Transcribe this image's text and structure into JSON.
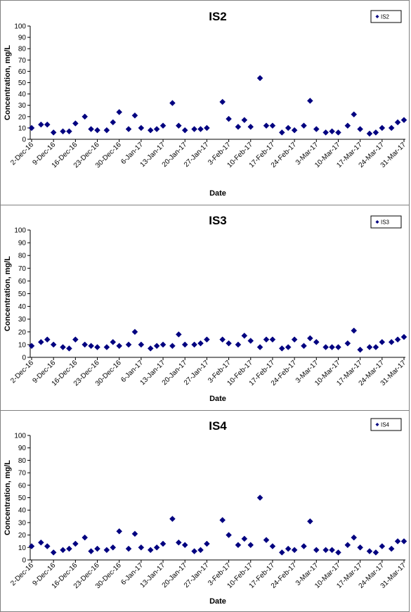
{
  "chart_data": [
    {
      "type": "scatter",
      "title": "IS2",
      "xlabel": "Date",
      "ylabel": "Concentration, mg/L",
      "ylim": [
        0,
        100
      ],
      "yticks": [
        0,
        10,
        20,
        30,
        40,
        50,
        60,
        70,
        80,
        90,
        100
      ],
      "xlim": [
        "2016-12-02",
        "2017-03-31"
      ],
      "xtick_labels": [
        "2-Dec-16",
        "9-Dec-16",
        "16-Dec-16",
        "23-Dec-16",
        "30-Dec-16",
        "6-Jan-17",
        "13-Jan-17",
        "20-Jan-17",
        "27-Jan-17",
        "3-Feb-17",
        "10-Feb-17",
        "17-Feb-17",
        "24-Feb-17",
        "3-Mar-17",
        "10-Mar-17",
        "17-Mar-17",
        "24-Mar-17",
        "31-Mar-17"
      ],
      "grid": false,
      "legend": "top-right",
      "series": [
        {
          "name": "IS2",
          "color": "#000080",
          "marker": "diamond",
          "x": [
            "2016-12-02",
            "2016-12-05",
            "2016-12-07",
            "2016-12-09",
            "2016-12-12",
            "2016-12-14",
            "2016-12-16",
            "2016-12-19",
            "2016-12-21",
            "2016-12-23",
            "2016-12-26",
            "2016-12-28",
            "2016-12-30",
            "2017-01-02",
            "2017-01-04",
            "2017-01-06",
            "2017-01-09",
            "2017-01-11",
            "2017-01-13",
            "2017-01-16",
            "2017-01-18",
            "2017-01-20",
            "2017-01-23",
            "2017-01-25",
            "2017-01-27",
            "2017-02-01",
            "2017-02-03",
            "2017-02-06",
            "2017-02-08",
            "2017-02-10",
            "2017-02-13",
            "2017-02-15",
            "2017-02-17",
            "2017-02-20",
            "2017-02-22",
            "2017-02-24",
            "2017-02-27",
            "2017-03-01",
            "2017-03-03",
            "2017-03-06",
            "2017-03-08",
            "2017-03-10",
            "2017-03-13",
            "2017-03-15",
            "2017-03-17",
            "2017-03-20",
            "2017-03-22",
            "2017-03-24",
            "2017-03-27",
            "2017-03-29",
            "2017-03-31"
          ],
          "y": [
            10,
            13,
            13,
            6,
            7,
            7,
            14,
            20,
            9,
            8,
            8,
            15,
            24,
            9,
            21,
            10,
            8,
            9,
            12,
            32,
            12,
            8,
            9,
            9,
            10,
            33,
            18,
            11,
            17,
            11,
            54,
            12,
            12,
            6,
            10,
            8,
            12,
            34,
            9,
            6,
            7,
            6,
            12,
            22,
            9,
            5,
            6,
            10,
            10,
            15,
            17
          ]
        }
      ]
    },
    {
      "type": "scatter",
      "title": "IS3",
      "xlabel": "Date",
      "ylabel": "Concentration, mg/L",
      "ylim": [
        0,
        100
      ],
      "yticks": [
        0,
        10,
        20,
        30,
        40,
        50,
        60,
        70,
        80,
        90,
        100
      ],
      "xlim": [
        "2016-12-02",
        "2017-03-31"
      ],
      "xtick_labels": [
        "2-Dec-16",
        "9-Dec-16",
        "16-Dec-16",
        "23-Dec-16",
        "30-Dec-16",
        "6-Jan-17",
        "13-Jan-17",
        "20-Jan-17",
        "27-Jan-17",
        "3-Feb-17",
        "10-Feb-17",
        "17-Feb-17",
        "24-Feb-17",
        "3-Mar-17",
        "10-Mar-17",
        "17-Mar-17",
        "24-Mar-17",
        "31-Mar-17"
      ],
      "grid": false,
      "legend": "top-right",
      "series": [
        {
          "name": "IS3",
          "color": "#000080",
          "marker": "diamond",
          "x": [
            "2016-12-02",
            "2016-12-05",
            "2016-12-07",
            "2016-12-09",
            "2016-12-12",
            "2016-12-14",
            "2016-12-16",
            "2016-12-19",
            "2016-12-21",
            "2016-12-23",
            "2016-12-26",
            "2016-12-28",
            "2016-12-30",
            "2017-01-02",
            "2017-01-04",
            "2017-01-06",
            "2017-01-09",
            "2017-01-11",
            "2017-01-13",
            "2017-01-16",
            "2017-01-18",
            "2017-01-20",
            "2017-01-23",
            "2017-01-25",
            "2017-01-27",
            "2017-02-01",
            "2017-02-03",
            "2017-02-06",
            "2017-02-08",
            "2017-02-10",
            "2017-02-13",
            "2017-02-15",
            "2017-02-17",
            "2017-02-20",
            "2017-02-22",
            "2017-02-24",
            "2017-02-27",
            "2017-03-01",
            "2017-03-03",
            "2017-03-06",
            "2017-03-08",
            "2017-03-10",
            "2017-03-13",
            "2017-03-15",
            "2017-03-17",
            "2017-03-20",
            "2017-03-22",
            "2017-03-24",
            "2017-03-27",
            "2017-03-29",
            "2017-03-31"
          ],
          "y": [
            9,
            12,
            14,
            10,
            8,
            7,
            14,
            10,
            9,
            8,
            8,
            12,
            9,
            10,
            20,
            10,
            7,
            9,
            10,
            9,
            18,
            10,
            10,
            11,
            14,
            14,
            11,
            10,
            17,
            13,
            8,
            14,
            14,
            7,
            8,
            14,
            9,
            15,
            12,
            8,
            8,
            8,
            11,
            21,
            6,
            8,
            8,
            12,
            12,
            14,
            16
          ]
        }
      ]
    },
    {
      "type": "scatter",
      "title": "IS4",
      "xlabel": "Date",
      "ylabel": "Concentration, mg/L",
      "ylim": [
        0,
        100
      ],
      "yticks": [
        0,
        10,
        20,
        30,
        40,
        50,
        60,
        70,
        80,
        90,
        100
      ],
      "xlim": [
        "2016-12-02",
        "2017-03-31"
      ],
      "xtick_labels": [
        "2-Dec-16",
        "9-Dec-16",
        "16-Dec-16",
        "23-Dec-16",
        "30-Dec-16",
        "6-Jan-17",
        "13-Jan-17",
        "20-Jan-17",
        "27-Jan-17",
        "3-Feb-17",
        "10-Feb-17",
        "17-Feb-17",
        "24-Feb-17",
        "3-Mar-17",
        "10-Mar-17",
        "17-Mar-17",
        "24-Mar-17",
        "31-Mar-17"
      ],
      "grid": false,
      "legend": "top-right",
      "series": [
        {
          "name": "IS4",
          "color": "#000080",
          "marker": "diamond",
          "x": [
            "2016-12-02",
            "2016-12-05",
            "2016-12-07",
            "2016-12-09",
            "2016-12-12",
            "2016-12-14",
            "2016-12-16",
            "2016-12-19",
            "2016-12-21",
            "2016-12-23",
            "2016-12-26",
            "2016-12-28",
            "2016-12-30",
            "2017-01-02",
            "2017-01-04",
            "2017-01-06",
            "2017-01-09",
            "2017-01-11",
            "2017-01-13",
            "2017-01-16",
            "2017-01-18",
            "2017-01-20",
            "2017-01-23",
            "2017-01-25",
            "2017-01-27",
            "2017-02-01",
            "2017-02-03",
            "2017-02-06",
            "2017-02-08",
            "2017-02-10",
            "2017-02-13",
            "2017-02-15",
            "2017-02-17",
            "2017-02-20",
            "2017-02-22",
            "2017-02-24",
            "2017-02-27",
            "2017-03-01",
            "2017-03-03",
            "2017-03-06",
            "2017-03-08",
            "2017-03-10",
            "2017-03-13",
            "2017-03-15",
            "2017-03-17",
            "2017-03-20",
            "2017-03-22",
            "2017-03-24",
            "2017-03-27",
            "2017-03-29",
            "2017-03-31"
          ],
          "y": [
            11,
            14,
            11,
            6,
            8,
            9,
            13,
            18,
            7,
            9,
            8,
            10,
            23,
            9,
            21,
            10,
            8,
            10,
            13,
            33,
            14,
            12,
            7,
            8,
            13,
            32,
            20,
            12,
            17,
            12,
            50,
            16,
            11,
            6,
            9,
            8,
            11,
            31,
            8,
            8,
            8,
            6,
            12,
            18,
            10,
            7,
            6,
            11,
            9,
            15,
            15
          ]
        }
      ]
    }
  ]
}
